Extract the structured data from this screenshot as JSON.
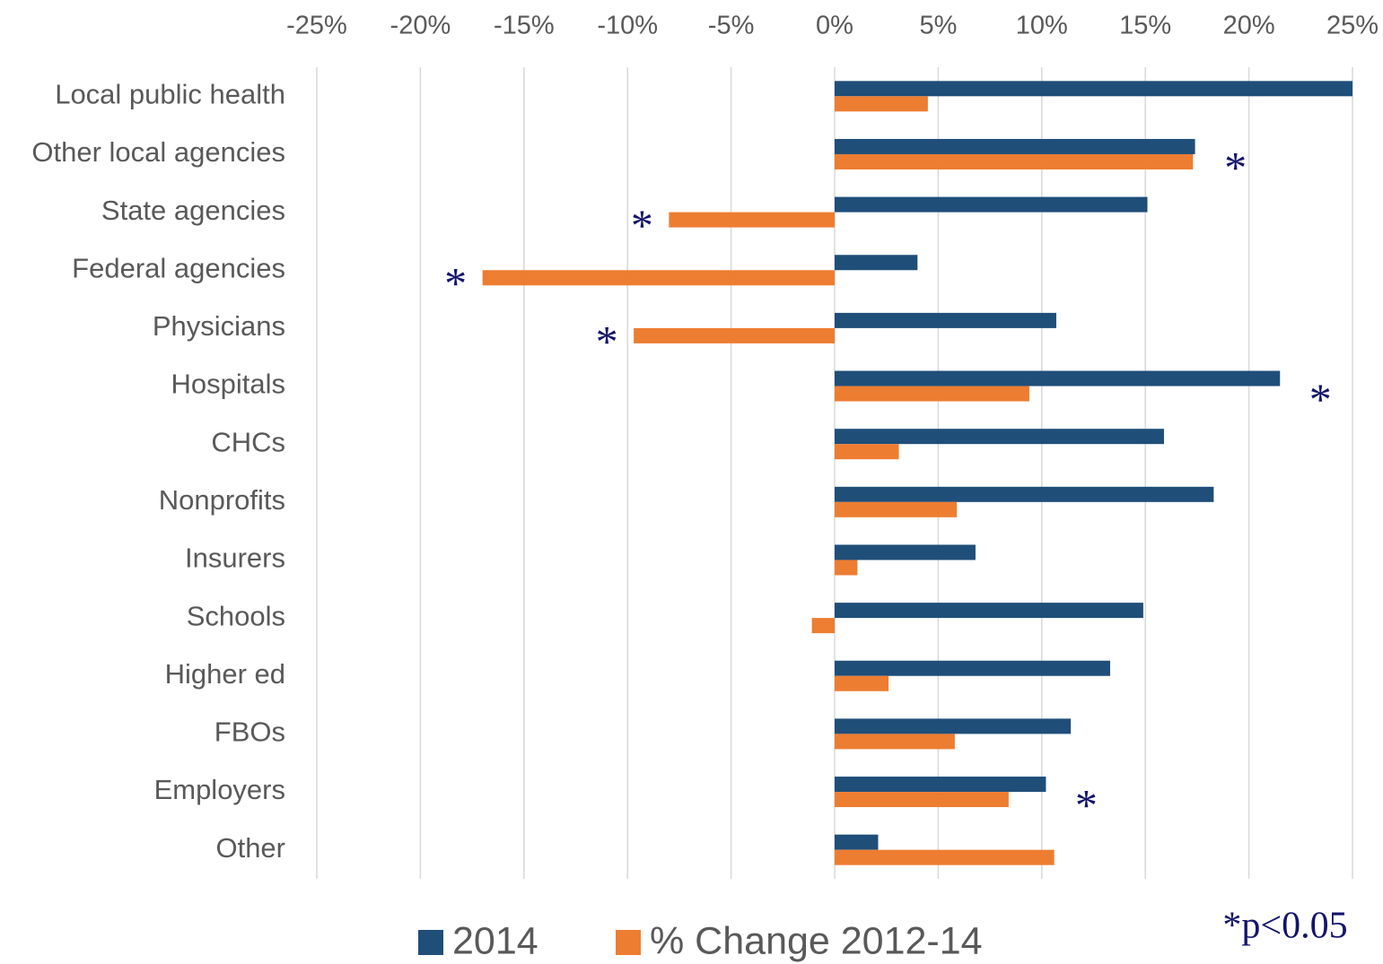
{
  "chart_data": {
    "type": "bar",
    "orientation": "horizontal",
    "categories": [
      "Local public health",
      "Other local agencies",
      "State agencies",
      "Federal agencies",
      "Physicians",
      "Hospitals",
      "CHCs",
      "Nonprofits",
      "Insurers",
      "Schools",
      "Higher ed",
      "FBOs",
      "Employers",
      "Other"
    ],
    "series": [
      {
        "name": "2014",
        "color": "#1f4e79",
        "values": [
          25.0,
          17.4,
          15.1,
          4.0,
          10.7,
          21.5,
          15.9,
          18.3,
          6.8,
          14.9,
          13.3,
          11.4,
          10.2,
          2.1
        ]
      },
      {
        "name": "% Change 2012-14",
        "color": "#ed7d31",
        "values": [
          4.5,
          17.3,
          -8.0,
          -17.0,
          -9.7,
          9.4,
          3.1,
          5.9,
          1.1,
          -1.1,
          2.6,
          5.8,
          8.4,
          10.6
        ]
      }
    ],
    "significance_markers": [
      null,
      "*",
      "*",
      "*",
      "*",
      "*",
      null,
      null,
      null,
      null,
      null,
      null,
      "*",
      null
    ],
    "footnote": "*p<0.05",
    "xlim": [
      -25,
      25
    ],
    "xticks": [
      {
        "value": -25,
        "label": "-25%"
      },
      {
        "value": -20,
        "label": "-20%"
      },
      {
        "value": -15,
        "label": "-15%"
      },
      {
        "value": -10,
        "label": "-10%"
      },
      {
        "value": -5,
        "label": "-5%"
      },
      {
        "value": 0,
        "label": "0%"
      },
      {
        "value": 5,
        "label": "5%"
      },
      {
        "value": 10,
        "label": "10%"
      },
      {
        "value": 15,
        "label": "15%"
      },
      {
        "value": 20,
        "label": "20%"
      },
      {
        "value": 25,
        "label": "25%"
      }
    ],
    "grid": true,
    "legend": "bottom"
  }
}
